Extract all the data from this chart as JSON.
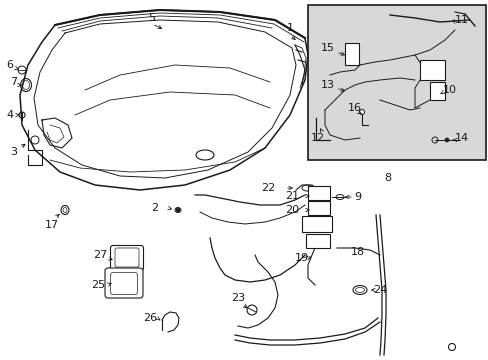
{
  "bg_color": "#ffffff",
  "line_color": "#1a1a1a",
  "inset_bg": "#d8d8d8",
  "fig_width": 4.89,
  "fig_height": 3.6,
  "dpi": 100
}
